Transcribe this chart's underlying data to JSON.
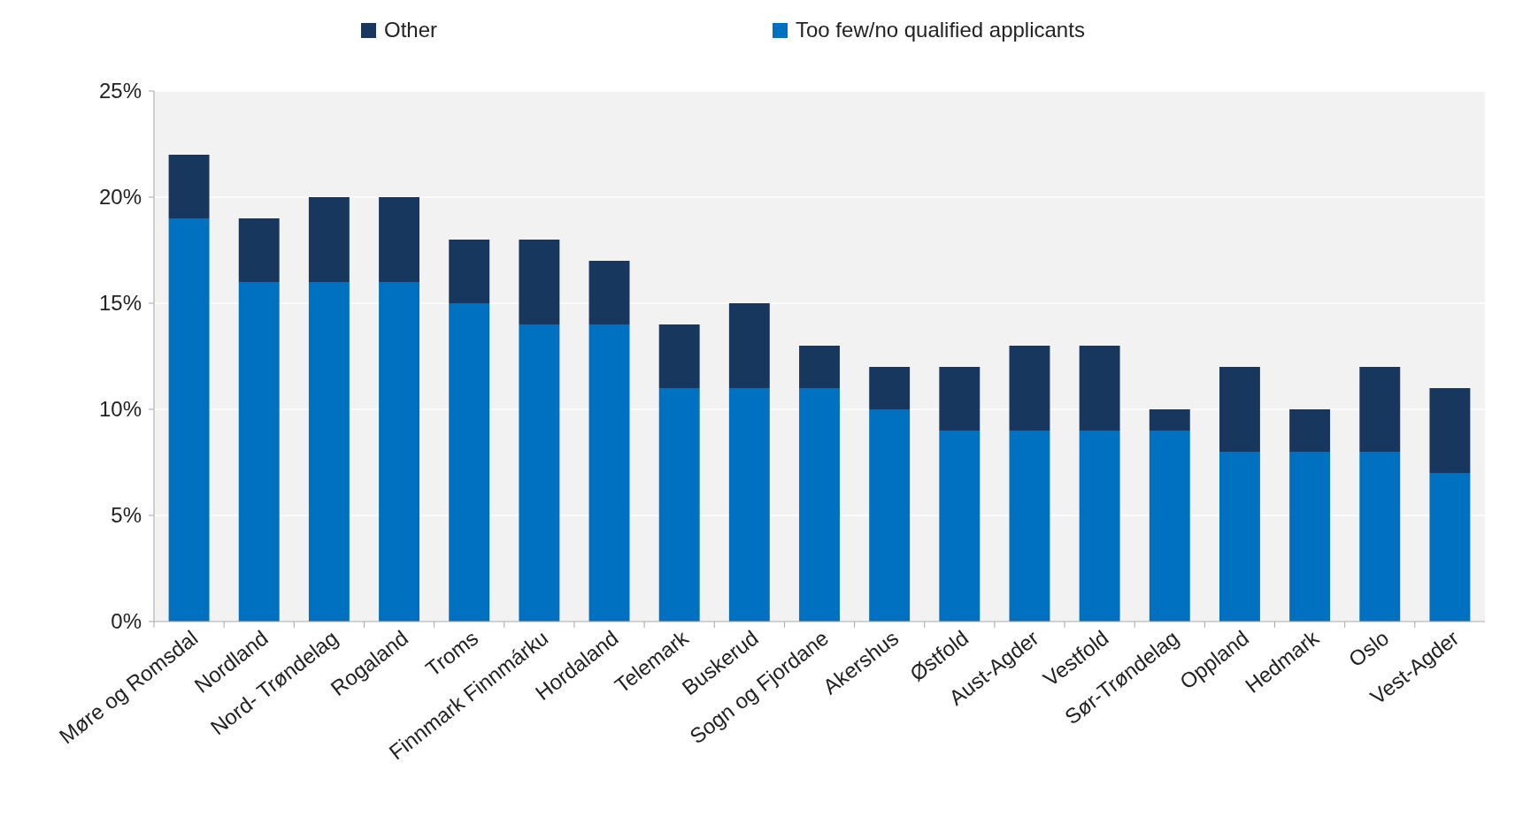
{
  "chart_data": {
    "type": "bar",
    "stacked": true,
    "legend": "top",
    "grid": "y",
    "categories": [
      "Møre og Romsdal",
      "Nordland",
      "Nord- Trøndelag",
      "Rogaland",
      "Troms",
      "Finnmark Finnmárku",
      "Hordaland",
      "Telemark",
      "Buskerud",
      "Sogn og Fjordane",
      "Akershus",
      "Østfold",
      "Aust-Agder",
      "Vestfold",
      "Sør-Trøndelag",
      "Oppland",
      "Hedmark",
      "Oslo",
      "Vest-Agder"
    ],
    "series": [
      {
        "name": "Too few/no qualified applicants",
        "color": "#0070c0",
        "values": [
          19,
          16,
          16,
          16,
          15,
          14,
          14,
          11,
          11,
          11,
          10,
          9,
          9,
          9,
          9,
          8,
          8,
          8,
          7
        ]
      },
      {
        "name": "Other",
        "color": "#17375e",
        "values": [
          3,
          3,
          4,
          4,
          3,
          4,
          3,
          3,
          4,
          2,
          2,
          3,
          4,
          4,
          1,
          4,
          2,
          4,
          4
        ]
      }
    ],
    "ylim": [
      0,
      25
    ],
    "yticks": [
      {
        "value": 0,
        "label": "0%"
      },
      {
        "value": 5,
        "label": "5%"
      },
      {
        "value": 10,
        "label": "10%"
      },
      {
        "value": 15,
        "label": "15%"
      },
      {
        "value": 20,
        "label": "20%"
      },
      {
        "value": 25,
        "label": "25%"
      }
    ]
  }
}
